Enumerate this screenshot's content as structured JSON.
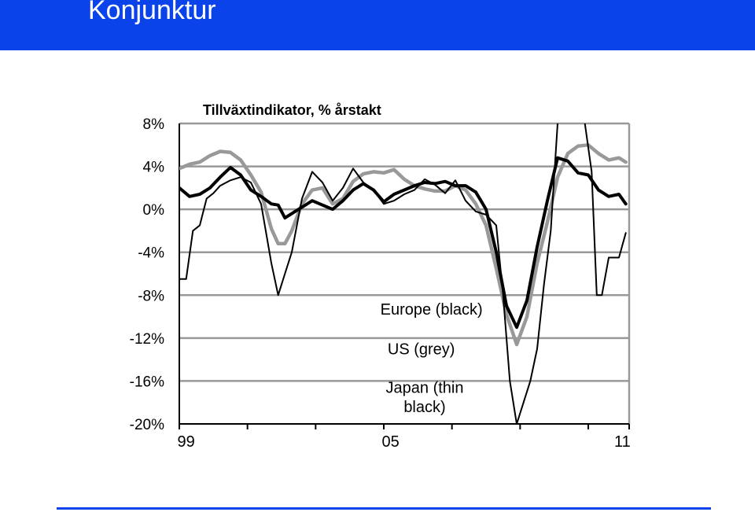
{
  "header": {
    "title": "Konjunktur"
  },
  "colors": {
    "banner": "#0b43ea",
    "europe": "#000000",
    "us": "#999999",
    "japan": "#000000"
  },
  "chart_data": {
    "type": "line",
    "title": "Tillväxtindikator, % årstakt",
    "ylim": [
      -20,
      8
    ],
    "xlim": [
      1999,
      2012.2
    ],
    "y_ticks": [
      8,
      4,
      0,
      -4,
      -8,
      -12,
      -16,
      -20
    ],
    "y_tick_labels": [
      "8%",
      "4%",
      "0%",
      "-4%",
      "-8%",
      "-12%",
      "-16%",
      "-20%"
    ],
    "x_tick_labels": [
      {
        "x": 1999.2,
        "label": "99"
      },
      {
        "x": 2005.2,
        "label": "05"
      },
      {
        "x": 2012.0,
        "label": "11"
      }
    ],
    "x_tick_marks": [
      1999,
      2001,
      2003,
      2005,
      2007,
      2009,
      2011,
      2012.2
    ],
    "grid": true,
    "annotations": [
      {
        "text": "Europe (black)",
        "x": 2006.4,
        "y": -9.3
      },
      {
        "text": "US (grey)",
        "x": 2006.1,
        "y": -13.0
      },
      {
        "text": "Japan (thin",
        "x": 2006.2,
        "y": -16.6
      },
      {
        "text": "black)",
        "x": 2006.2,
        "y": -18.4
      }
    ],
    "series": [
      {
        "key": "us",
        "x": [
          1999.0,
          1999.3,
          1999.6,
          1999.9,
          2000.2,
          2000.5,
          2000.8,
          2001.1,
          2001.4,
          2001.7,
          2001.9,
          2002.1,
          2002.3,
          2002.6,
          2002.9,
          2003.2,
          2003.5,
          2003.8,
          2004.1,
          2004.4,
          2004.7,
          2005.0,
          2005.3,
          2005.6,
          2005.9,
          2006.2,
          2006.5,
          2006.8,
          2007.1,
          2007.4,
          2007.7,
          2008.0,
          2008.3,
          2008.6,
          2008.9,
          2009.2,
          2009.5,
          2009.8,
          2010.1,
          2010.4,
          2010.7,
          2011.0,
          2011.3,
          2011.6,
          2011.9,
          2012.1
        ],
        "y": [
          3.8,
          4.2,
          4.4,
          5.0,
          5.4,
          5.3,
          4.6,
          3.2,
          1.6,
          -1.8,
          -3.2,
          -3.2,
          -2.0,
          0.5,
          1.8,
          2.0,
          0.5,
          1.0,
          2.6,
          3.3,
          3.5,
          3.4,
          3.7,
          2.8,
          2.2,
          1.9,
          1.7,
          1.7,
          2.2,
          1.8,
          0.5,
          -1.5,
          -5.5,
          -9.8,
          -12.6,
          -10.0,
          -5.0,
          -1.2,
          3.0,
          5.2,
          5.9,
          6.0,
          5.2,
          4.6,
          4.8,
          4.4
        ]
      },
      {
        "key": "europe",
        "x": [
          1999.0,
          1999.3,
          1999.6,
          1999.9,
          2000.2,
          2000.5,
          2000.8,
          2001.1,
          2001.4,
          2001.7,
          2001.9,
          2002.1,
          2002.3,
          2002.6,
          2002.9,
          2003.2,
          2003.5,
          2003.8,
          2004.1,
          2004.4,
          2004.7,
          2005.0,
          2005.3,
          2005.6,
          2005.9,
          2006.2,
          2006.5,
          2006.8,
          2007.1,
          2007.4,
          2007.7,
          2008.0,
          2008.3,
          2008.6,
          2008.9,
          2009.2,
          2009.5,
          2009.8,
          2010.1,
          2010.4,
          2010.7,
          2011.0,
          2011.3,
          2011.6,
          2011.9,
          2012.1
        ],
        "y": [
          2.0,
          1.2,
          1.4,
          2.0,
          3.0,
          3.9,
          3.2,
          1.8,
          1.2,
          0.5,
          0.4,
          -0.8,
          -0.4,
          0.2,
          0.8,
          0.4,
          0.0,
          0.8,
          1.8,
          2.4,
          1.8,
          0.7,
          1.4,
          1.8,
          2.2,
          2.5,
          2.4,
          2.6,
          2.2,
          2.2,
          1.6,
          0.0,
          -4.0,
          -9.0,
          -11.0,
          -8.5,
          -3.5,
          0.8,
          4.8,
          4.5,
          3.4,
          3.2,
          1.8,
          1.2,
          1.4,
          0.5
        ]
      },
      {
        "key": "japan",
        "x": [
          1999.0,
          1999.2,
          1999.4,
          1999.6,
          1999.8,
          2000.0,
          2000.2,
          2000.5,
          2000.8,
          2001.1,
          2001.4,
          2001.7,
          2001.9,
          2002.1,
          2002.3,
          2002.6,
          2002.9,
          2003.2,
          2003.5,
          2003.8,
          2004.1,
          2004.4,
          2004.7,
          2005.0,
          2005.3,
          2005.6,
          2005.9,
          2006.2,
          2006.5,
          2006.8,
          2007.1,
          2007.4,
          2007.7,
          2008.0,
          2008.3,
          2008.5,
          2008.7,
          2008.9,
          2009.1,
          2009.3,
          2009.5,
          2009.7,
          2009.9,
          2010.1,
          2010.3,
          2010.6,
          2010.9,
          2011.1,
          2011.25,
          2011.4,
          2011.6,
          2011.9,
          2012.1
        ],
        "y": [
          -6.5,
          -6.5,
          -2.0,
          -1.5,
          1.0,
          1.5,
          2.2,
          2.7,
          3.0,
          2.5,
          0.5,
          -5.0,
          -8.0,
          -6.0,
          -4.0,
          1.0,
          3.5,
          2.5,
          0.8,
          2.0,
          3.8,
          2.5,
          1.8,
          0.5,
          0.8,
          1.4,
          1.8,
          2.8,
          2.3,
          1.5,
          2.7,
          0.8,
          -0.2,
          -0.5,
          -1.5,
          -8.0,
          -16.0,
          -20.0,
          -18.0,
          -16.0,
          -13.0,
          -7.0,
          -2.0,
          8.0,
          18.0,
          18.0,
          8.0,
          3.5,
          -8.0,
          -8.0,
          -4.5,
          -4.5,
          -2.2
        ]
      }
    ]
  }
}
